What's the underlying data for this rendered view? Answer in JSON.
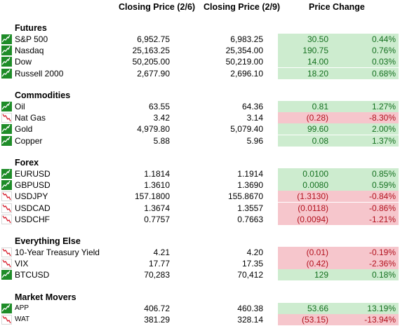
{
  "headers": {
    "close1": "Closing Price (2/6)",
    "close2": "Closing Price (2/9)",
    "change": "Price Change"
  },
  "colors": {
    "up": "#1e8c28",
    "down": "#d7202f",
    "pos_fill": "#cdeccf",
    "neg_fill": "#f6c6cc"
  },
  "sections": [
    {
      "title": "Futures",
      "rows": [
        {
          "name": "S&P 500",
          "close1": "6,952.75",
          "close2": "6,983.25",
          "chg": "30.50",
          "pct": "0.44%",
          "dir": "up"
        },
        {
          "name": "Nasdaq",
          "close1": "25,163.25",
          "close2": "25,354.00",
          "chg": "190.75",
          "pct": "0.76%",
          "dir": "up"
        },
        {
          "name": "Dow",
          "close1": "50,205.00",
          "close2": "50,219.00",
          "chg": "14.00",
          "pct": "0.03%",
          "dir": "up"
        },
        {
          "name": "Russell 2000",
          "close1": "2,677.90",
          "close2": "2,696.10",
          "chg": "18.20",
          "pct": "0.68%",
          "dir": "up"
        }
      ]
    },
    {
      "title": "Commodities",
      "rows": [
        {
          "name": "Oil",
          "close1": "63.55",
          "close2": "64.36",
          "chg": "0.81",
          "pct": "1.27%",
          "dir": "up"
        },
        {
          "name": "Nat Gas",
          "close1": "3.42",
          "close2": "3.14",
          "chg": "(0.28)",
          "pct": "-8.30%",
          "dir": "down"
        },
        {
          "name": "Gold",
          "close1": "4,979.80",
          "close2": "5,079.40",
          "chg": "99.60",
          "pct": "2.00%",
          "dir": "up"
        },
        {
          "name": "Copper",
          "close1": "5.88",
          "close2": "5.96",
          "chg": "0.08",
          "pct": "1.37%",
          "dir": "up"
        }
      ]
    },
    {
      "title": "Forex",
      "rows": [
        {
          "name": "EURUSD",
          "close1": "1.1814",
          "close2": "1.1914",
          "chg": "0.0100",
          "pct": "0.85%",
          "dir": "up"
        },
        {
          "name": "GBPUSD",
          "close1": "1.3610",
          "close2": "1.3690",
          "chg": "0.0080",
          "pct": "0.59%",
          "dir": "up"
        },
        {
          "name": "USDJPY",
          "close1": "157.1800",
          "close2": "155.8670",
          "chg": "(1.3130)",
          "pct": "-0.84%",
          "dir": "down"
        },
        {
          "name": "USDCAD",
          "close1": "1.3674",
          "close2": "1.3557",
          "chg": "(0.0118)",
          "pct": "-0.86%",
          "dir": "down"
        },
        {
          "name": "USDCHF",
          "close1": "0.7757",
          "close2": "0.7663",
          "chg": "(0.0094)",
          "pct": "-1.21%",
          "dir": "down"
        }
      ]
    },
    {
      "title": "Everything Else",
      "rows": [
        {
          "name": "10-Year Treasury Yield",
          "close1": "4.21",
          "close2": "4.20",
          "chg": "(0.01)",
          "pct": "-0.19%",
          "dir": "down"
        },
        {
          "name": "VIX",
          "close1": "17.77",
          "close2": "17.35",
          "chg": "(0.42)",
          "pct": "-2.36%",
          "dir": "down"
        },
        {
          "name": "BTCUSD",
          "close1": "70,283",
          "close2": "70,412",
          "chg": "129",
          "pct": "0.18%",
          "dir": "up"
        }
      ]
    },
    {
      "title": "Market Movers",
      "rows": [
        {
          "name": "APP",
          "close1": "406.72",
          "close2": "460.38",
          "chg": "53.66",
          "pct": "13.19%",
          "dir": "up",
          "small": true
        },
        {
          "name": "WAT",
          "close1": "381.29",
          "close2": "328.14",
          "chg": "(53.15)",
          "pct": "-13.94%",
          "dir": "down",
          "small": true
        }
      ]
    }
  ]
}
